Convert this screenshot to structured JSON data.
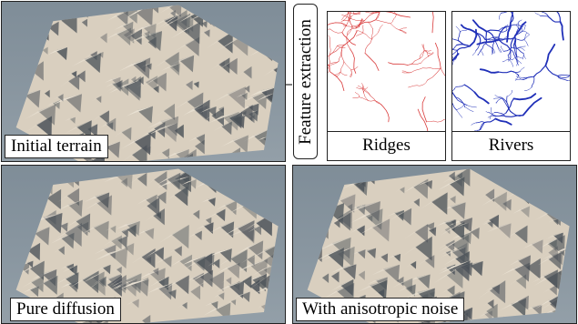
{
  "panels": {
    "initial": {
      "caption": "Initial terrain"
    },
    "diffusion": {
      "caption": "Pure diffusion"
    },
    "anisotropic": {
      "caption": "With anisotropic noise"
    }
  },
  "extraction": {
    "label": "Feature extraction",
    "ridges": {
      "label": "Ridges",
      "color": "#d93a3a"
    },
    "rivers": {
      "label": "Rivers",
      "color": "#1f2fb8"
    }
  },
  "colors": {
    "sky": "#8693a0",
    "terrain_light": "#e8e0d2",
    "terrain_shadow": "#4a5158"
  }
}
